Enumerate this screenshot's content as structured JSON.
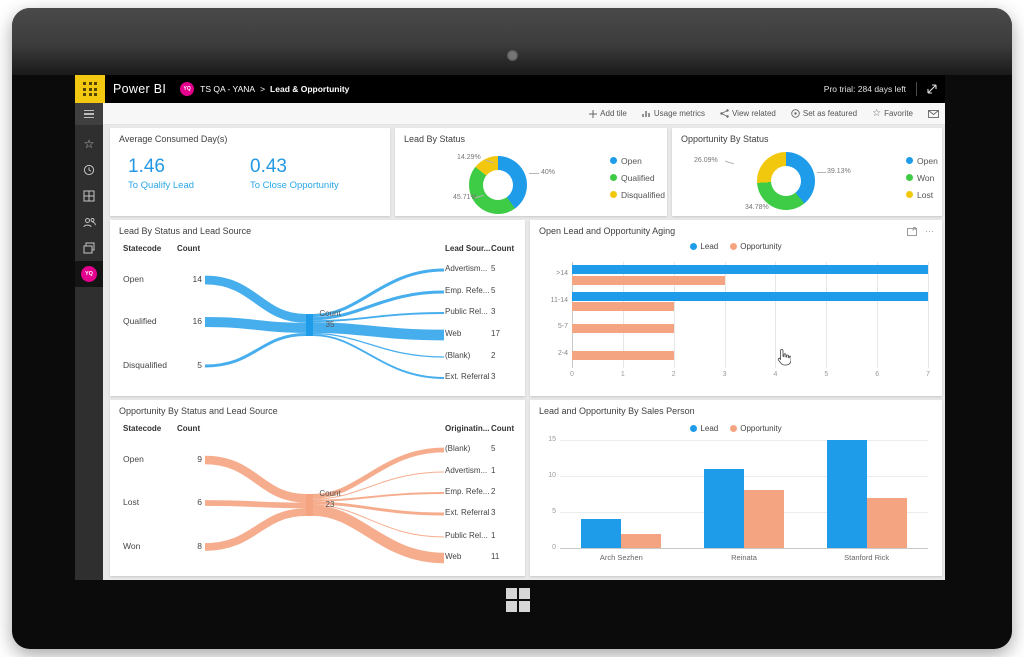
{
  "topbar": {
    "app_name": "Power BI",
    "avatar_initials": "YQ",
    "breadcrumb_workspace": "TS QA - YANA",
    "breadcrumb_separator": ">",
    "breadcrumb_page": "Lead & Opportunity",
    "pro_trial": "Pro trial: 284 days left"
  },
  "actionbar": {
    "add_tile": "Add tile",
    "usage_metrics": "Usage metrics",
    "view_related": "View related",
    "set_as_featured": "Set as featured",
    "favorite": "Favorite"
  },
  "sidebar": {
    "avatar_initials": "YQ"
  },
  "kpi_tile": {
    "title": "Average Consumed Day(s)",
    "kpis": [
      {
        "value": "1.46",
        "label": "To Qualify Lead"
      },
      {
        "value": "0.43",
        "label": "To Close Opportunity"
      }
    ]
  },
  "colors": {
    "blue": "#1e9ce9",
    "green": "#3ecb46",
    "yellow": "#f2c80f",
    "orange": "#f5a482",
    "brand_yellow": "#f2c811",
    "avatar_pink": "#e3008c",
    "kpi_blue": "#2499e3"
  },
  "chart_data": [
    {
      "id": "lead-by-status",
      "type": "pie",
      "title": "Lead By Status",
      "labels": [
        "Open",
        "Qualified",
        "Disqualified"
      ],
      "values": [
        40,
        45.71,
        14.29
      ],
      "display_labels": [
        "40%",
        "45.71%",
        "14.29%"
      ],
      "colors": [
        "#1e9ce9",
        "#3ecb46",
        "#f2c80f"
      ],
      "legend_position": "right",
      "donut": true
    },
    {
      "id": "opportunity-by-status",
      "type": "pie",
      "title": "Opportunity By Status",
      "labels": [
        "Open",
        "Won",
        "Lost"
      ],
      "values": [
        39.13,
        34.78,
        26.09
      ],
      "display_labels": [
        "39.13%",
        "34.78%",
        "26.09%"
      ],
      "colors": [
        "#1e9ce9",
        "#3ecb46",
        "#f2c80f"
      ],
      "legend_position": "right",
      "donut": true
    },
    {
      "id": "lead-sankey",
      "type": "sankey",
      "title": "Lead By Status and Lead Source",
      "left_headers": [
        "Statecode",
        "Count"
      ],
      "left_nodes": [
        {
          "label": "Open",
          "count": 14
        },
        {
          "label": "Qualified",
          "count": 16
        },
        {
          "label": "Disqualified",
          "count": 5
        }
      ],
      "center_node": {
        "label": "Count",
        "total": 35
      },
      "right_headers": [
        "Lead Sour...",
        "Count"
      ],
      "right_nodes": [
        {
          "label": "Advertism...",
          "count": 5
        },
        {
          "label": "Emp. Refe...",
          "count": 5
        },
        {
          "label": "Public Rel...",
          "count": 3
        },
        {
          "label": "Web",
          "count": 17
        },
        {
          "label": "(Blank)",
          "count": 2
        },
        {
          "label": "Ext. Referral",
          "count": 3
        }
      ],
      "color": "#1e9ce9"
    },
    {
      "id": "opportunity-sankey",
      "type": "sankey",
      "title": "Opportunity By Status and Lead Source",
      "left_headers": [
        "Statecode",
        "Count"
      ],
      "left_nodes": [
        {
          "label": "Open",
          "count": 9
        },
        {
          "label": "Lost",
          "count": 6
        },
        {
          "label": "Won",
          "count": 8
        }
      ],
      "center_node": {
        "label": "Count",
        "total": 23
      },
      "right_headers": [
        "Originatin...",
        "Count"
      ],
      "right_nodes": [
        {
          "label": "(Blank)",
          "count": 5
        },
        {
          "label": "Advertism...",
          "count": 1
        },
        {
          "label": "Emp. Refe...",
          "count": 2
        },
        {
          "label": "Ext. Referral",
          "count": 3
        },
        {
          "label": "Public Rel...",
          "count": 1
        },
        {
          "label": "Web",
          "count": 11
        }
      ],
      "color": "#f5a482"
    },
    {
      "id": "open-lead-opportunity-aging",
      "type": "bar",
      "orientation": "horizontal",
      "title": "Open Lead and Opportunity Aging",
      "categories": [
        ">14",
        "11-14",
        "5-7",
        "2-4"
      ],
      "series": [
        {
          "name": "Lead",
          "color": "#1e9ce9",
          "values": [
            7,
            7,
            0,
            0
          ]
        },
        {
          "name": "Opportunity",
          "color": "#f5a482",
          "values": [
            3,
            2,
            2,
            2
          ]
        }
      ],
      "xlim": [
        0,
        7
      ],
      "xticks": [
        0,
        1,
        2,
        3,
        4,
        5,
        6,
        7
      ],
      "legend_position": "top",
      "grid": true
    },
    {
      "id": "lead-opportunity-by-salesperson",
      "type": "bar",
      "orientation": "vertical",
      "title": "Lead and Opportunity By Sales Person",
      "categories": [
        "Arch Sezhen",
        "Reinata",
        "Stanford Rick"
      ],
      "series": [
        {
          "name": "Lead",
          "color": "#1e9ce9",
          "values": [
            4,
            11,
            15
          ]
        },
        {
          "name": "Opportunity",
          "color": "#f5a482",
          "values": [
            2,
            8,
            7
          ]
        }
      ],
      "ylim": [
        0,
        15
      ],
      "yticks": [
        0,
        5,
        10,
        15
      ],
      "legend_position": "top",
      "grid": true
    }
  ]
}
